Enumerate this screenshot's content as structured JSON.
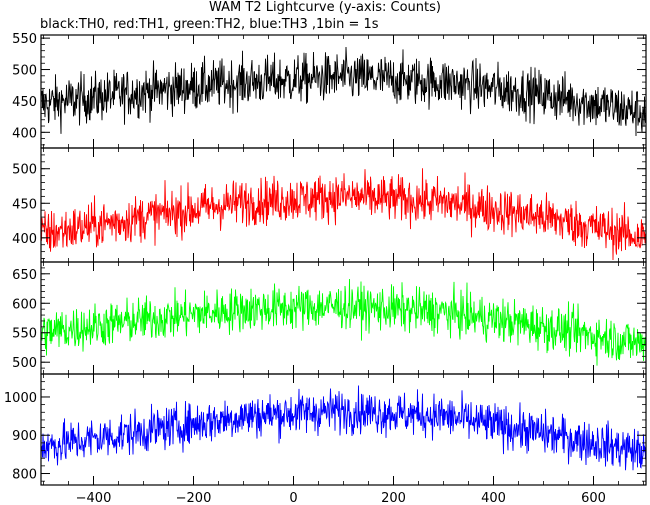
{
  "title": "WAM T2 Lightcurve (y-axis: Counts)",
  "subtitle": "black:TH0, red:TH1, green:TH2, blue:TH3 ,1bin = 1s",
  "chart_data": {
    "type": "line",
    "title": "WAM T2 Lightcurve (y-axis: Counts)",
    "xlabel": "",
    "ylabel": "",
    "xlim": [
      -505,
      705
    ],
    "x_ticks": [
      -400,
      -200,
      0,
      200,
      400,
      600
    ],
    "x_tick_labels": [
      "−400",
      "−200",
      "0",
      "200",
      "400",
      "600"
    ],
    "bin_seconds": 1,
    "panels": [
      {
        "color": "#000000",
        "ylim": [
          375,
          555
        ],
        "y_ticks": [
          400,
          450,
          500,
          550
        ],
        "y_tick_labels": [
          "400",
          "450",
          "500",
          "550"
        ],
        "series": {
          "x_range": [
            -505,
            705
          ],
          "trend": [
            [
              -505,
              445
            ],
            [
              -300,
              465
            ],
            [
              -100,
              480
            ],
            [
              100,
              488
            ],
            [
              300,
              480
            ],
            [
              500,
              460
            ],
            [
              705,
              430
            ]
          ],
          "noise_amplitude": 28
        }
      },
      {
        "color": "#ff0000",
        "ylim": [
          365,
          530
        ],
        "y_ticks": [
          400,
          450,
          500
        ],
        "y_tick_labels": [
          "400",
          "450",
          "500"
        ],
        "series": {
          "x_range": [
            -505,
            705
          ],
          "trend": [
            [
              -505,
              405
            ],
            [
              -300,
              430
            ],
            [
              -100,
              452
            ],
            [
              100,
              460
            ],
            [
              300,
              452
            ],
            [
              500,
              430
            ],
            [
              705,
              400
            ]
          ],
          "noise_amplitude": 24
        }
      },
      {
        "color": "#00ff00",
        "ylim": [
          480,
          670
        ],
        "y_ticks": [
          500,
          550,
          600,
          650
        ],
        "y_tick_labels": [
          "500",
          "550",
          "600",
          "650"
        ],
        "series": {
          "x_range": [
            -505,
            705
          ],
          "trend": [
            [
              -505,
              550
            ],
            [
              -300,
              572
            ],
            [
              -100,
              590
            ],
            [
              100,
              595
            ],
            [
              300,
              585
            ],
            [
              500,
              560
            ],
            [
              705,
              530
            ]
          ],
          "noise_amplitude": 27
        }
      },
      {
        "color": "#0000ff",
        "ylim": [
          770,
          1060
        ],
        "y_ticks": [
          800,
          900,
          1000
        ],
        "y_tick_labels": [
          "800",
          "900",
          "1000"
        ],
        "series": {
          "x_range": [
            -505,
            705
          ],
          "trend": [
            [
              -505,
              870
            ],
            [
              -300,
              910
            ],
            [
              -100,
              950
            ],
            [
              100,
              965
            ],
            [
              300,
              950
            ],
            [
              500,
              905
            ],
            [
              705,
              855
            ]
          ],
          "noise_amplitude": 40
        }
      }
    ]
  }
}
